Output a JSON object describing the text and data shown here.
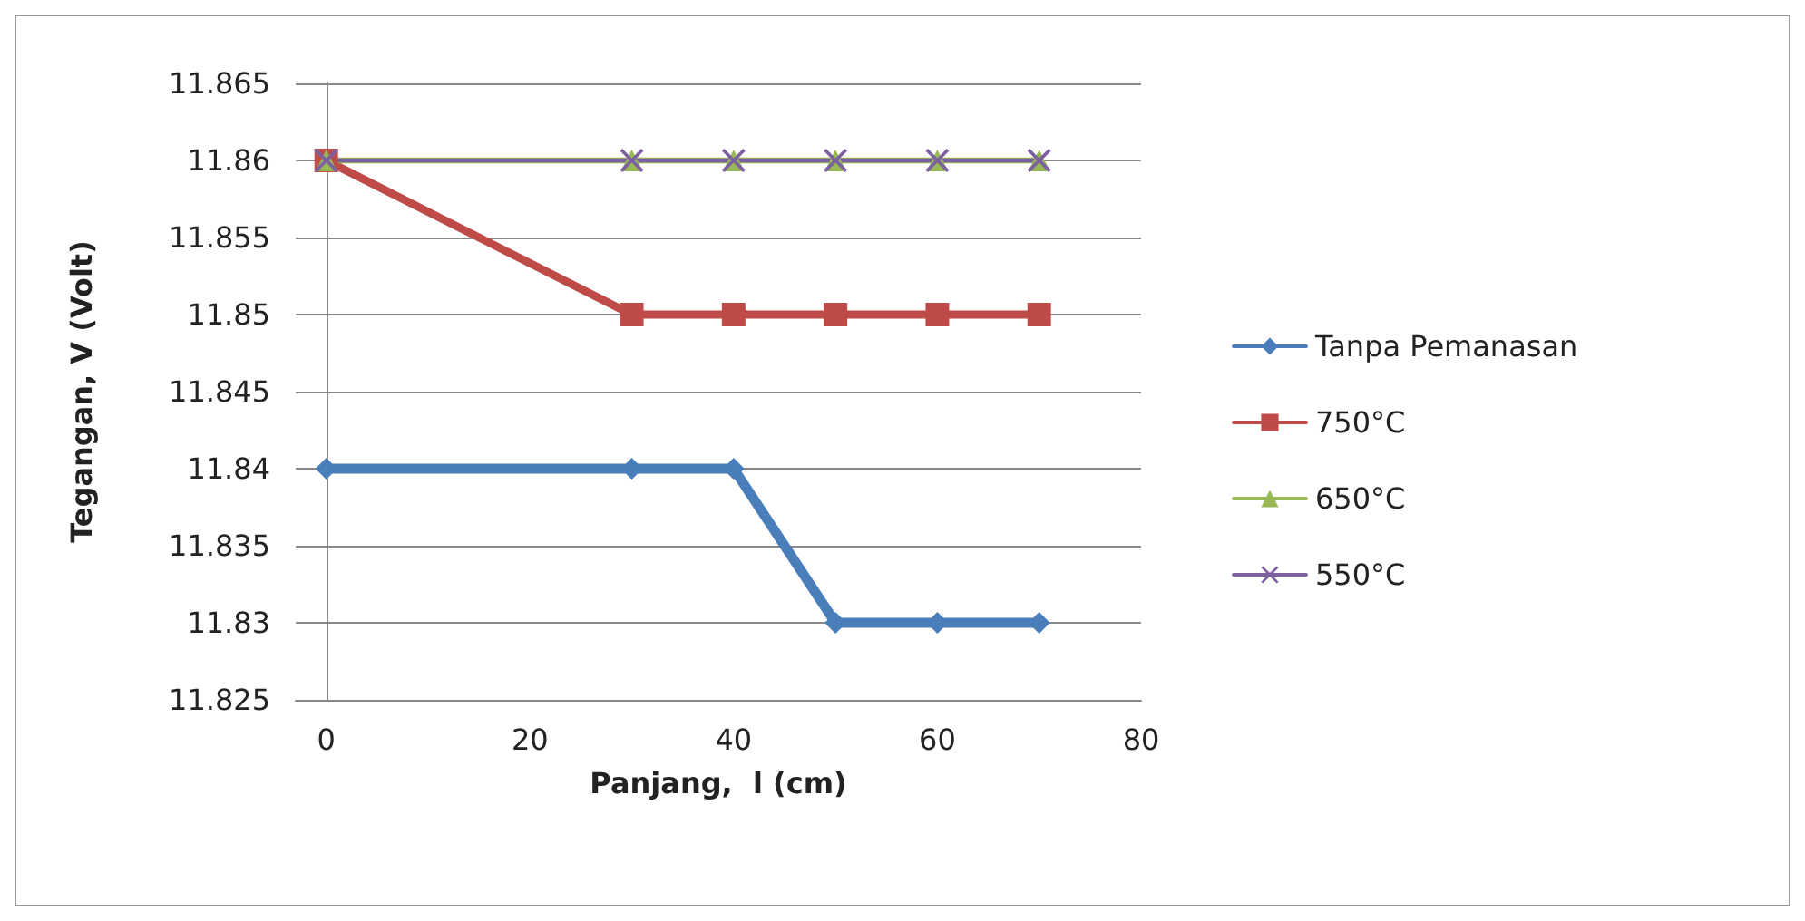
{
  "chart_data": {
    "type": "line",
    "xlabel": "Panjang,  l (cm)",
    "ylabel": "Tegangan, V (Volt)",
    "x": [
      0,
      30,
      40,
      50,
      60,
      70
    ],
    "series": [
      {
        "name": "Tanpa Pemanasan",
        "color": "#4a7ebb",
        "marker": "diamond",
        "values": [
          11.84,
          11.84,
          11.84,
          11.83,
          11.83,
          11.83
        ]
      },
      {
        "name": "750°C",
        "color": "#be4b48",
        "marker": "square",
        "values": [
          11.86,
          11.85,
          11.85,
          11.85,
          11.85,
          11.85
        ]
      },
      {
        "name": "650°C",
        "color": "#98b954",
        "marker": "triangle",
        "values": [
          11.86,
          11.86,
          11.86,
          11.86,
          11.86,
          11.86
        ]
      },
      {
        "name": "550°C",
        "color": "#7d60a0",
        "marker": "cross",
        "values": [
          11.86,
          11.86,
          11.86,
          11.86,
          11.86,
          11.86
        ]
      }
    ],
    "xlim": [
      -3,
      80
    ],
    "xticks": [
      0,
      20,
      40,
      60,
      80
    ],
    "ylim": [
      11.825,
      11.865
    ],
    "yticks": [
      11.825,
      11.83,
      11.835,
      11.84,
      11.845,
      11.85,
      11.855,
      11.86,
      11.865
    ],
    "grid": "y",
    "legend": "right"
  }
}
